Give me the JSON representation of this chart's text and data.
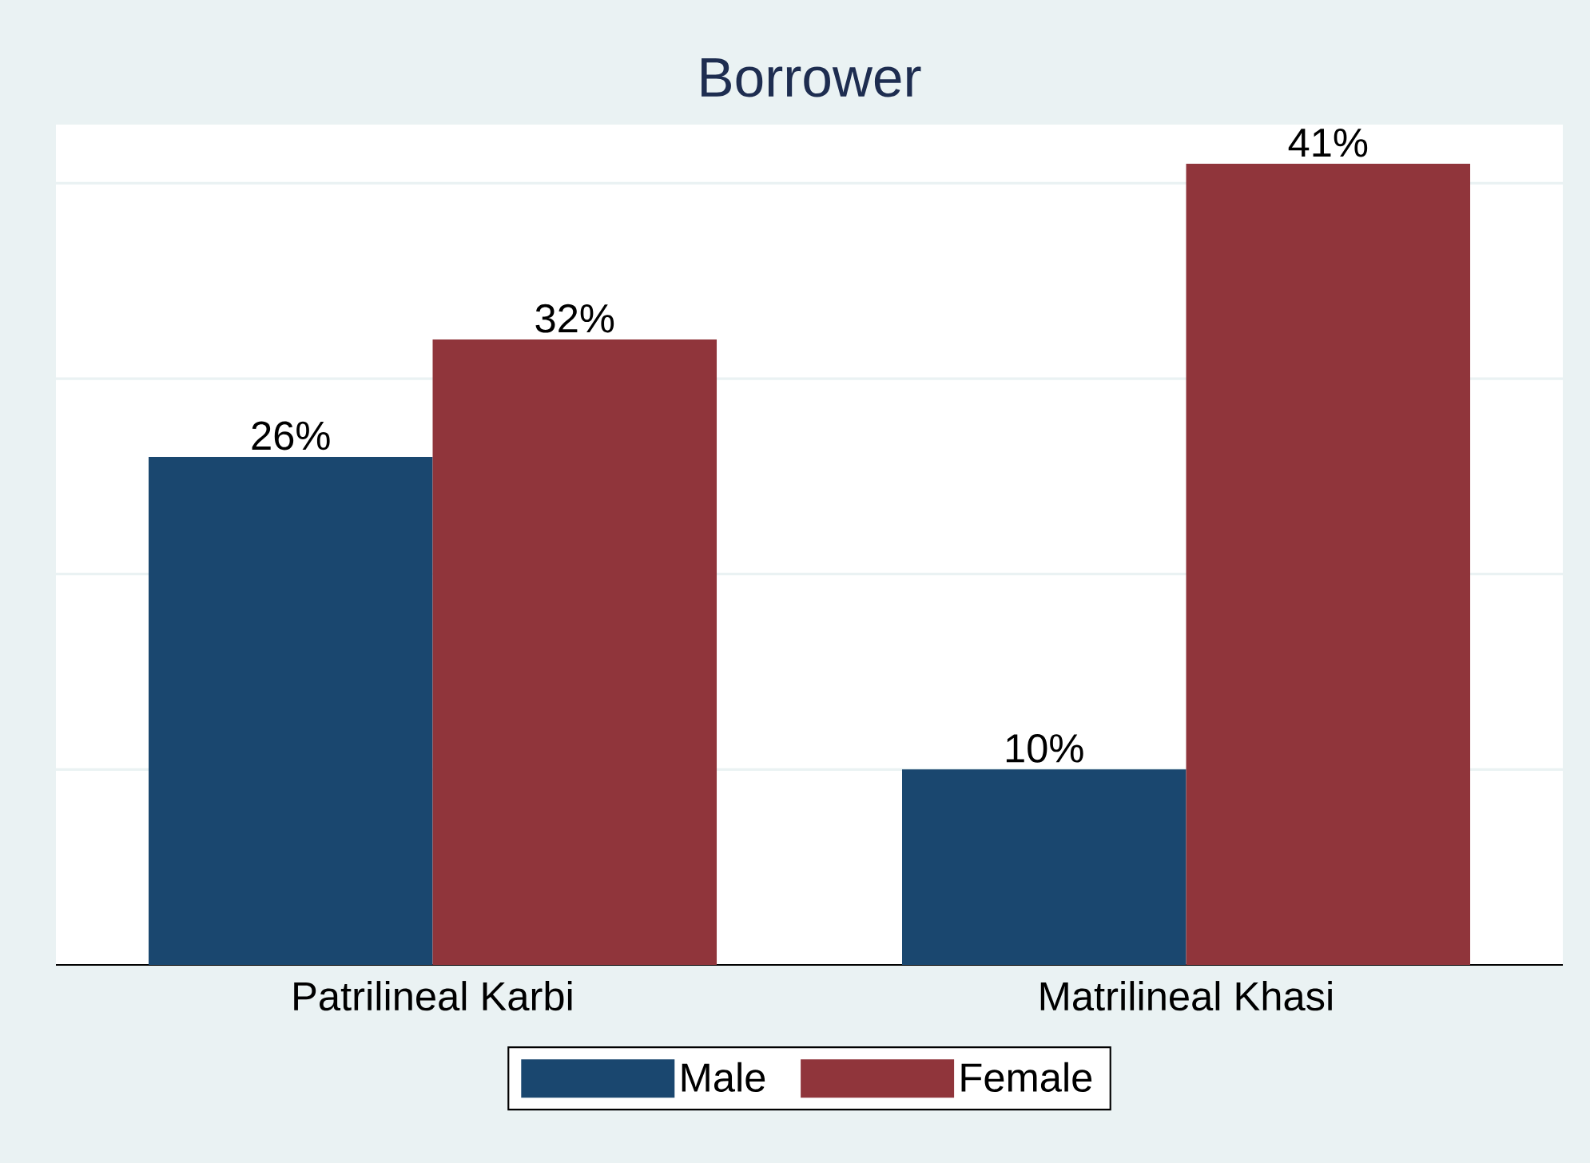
{
  "chart_data": {
    "type": "bar",
    "title": "Borrower",
    "categories": [
      "Patrilineal Karbi",
      "Matrilineal Khasi"
    ],
    "series": [
      {
        "name": "Male",
        "color": "#1a476f",
        "values": [
          26,
          10
        ],
        "value_labels": [
          "26%",
          "10%"
        ]
      },
      {
        "name": "Female",
        "color": "#90353b",
        "values": [
          32,
          41
        ],
        "value_labels": [
          "32%",
          "41%"
        ]
      }
    ],
    "ylim": [
      0,
      43
    ],
    "yticks": [
      {
        "value": 10,
        "label": null
      },
      {
        "value": 20,
        "label": null
      },
      {
        "value": 30,
        "label": null
      },
      {
        "value": 40,
        "label": null
      }
    ],
    "grid": "y",
    "legend": "bottom",
    "tick_labels": "x"
  }
}
